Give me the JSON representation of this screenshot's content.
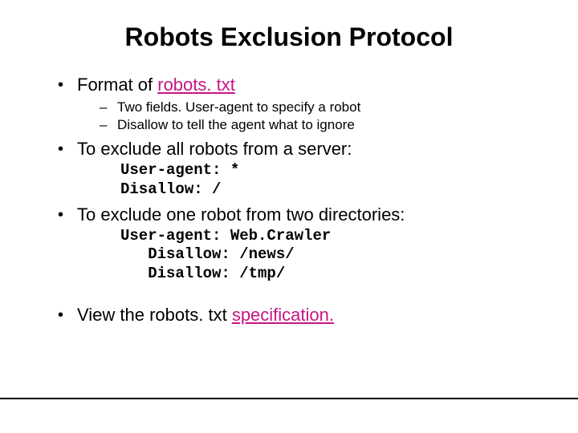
{
  "title": "Robots Exclusion Protocol",
  "bullets": [
    {
      "prefix": "Format of ",
      "link": "robots. txt",
      "suffix": "",
      "sub": [
        "Two fields.  User-agent to specify a robot",
        "Disallow to tell the agent what to ignore"
      ]
    },
    {
      "text": "To exclude all robots from a server:",
      "code": "User-agent: *\nDisallow: /"
    },
    {
      "text": "To exclude one robot from two directories:",
      "code_lines": [
        "User-agent: Web.Crawler",
        "   Disallow: /news/",
        "   Disallow: /tmp/"
      ]
    },
    {
      "prefix": "View the robots. txt ",
      "link": "specification.",
      "suffix": ""
    }
  ],
  "colors": {
    "background": "#ffffff",
    "text": "#000000",
    "link": "#c71585"
  },
  "typography": {
    "title_fontsize": 32,
    "bullet_fontsize": 22,
    "sub_fontsize": 17,
    "code_fontsize": 19,
    "font_family": "Arial",
    "code_font_family": "Courier New"
  }
}
